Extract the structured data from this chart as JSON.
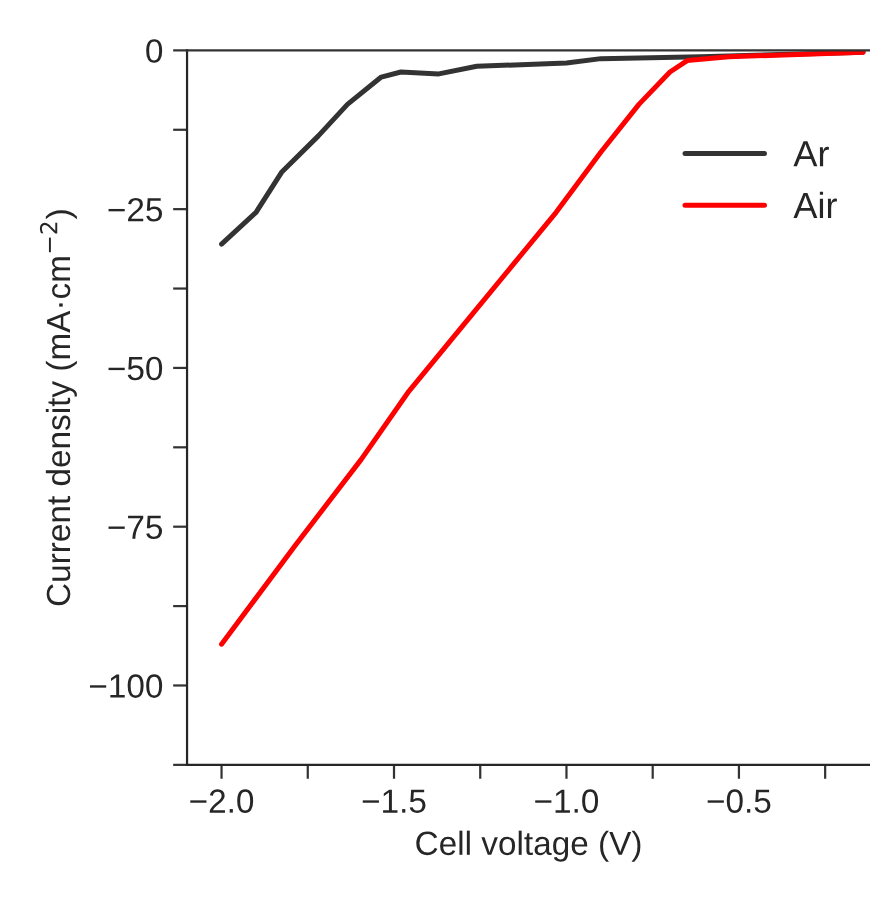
{
  "chart_data": {
    "type": "line",
    "xlabel": "Cell voltage (V)",
    "ylabel": "Current density (mA·cm$^{−2}$)",
    "xlim": [
      -2.1,
      -0.12
    ],
    "ylim": [
      -112.5,
      0
    ],
    "xticks": [
      {
        "value": -2.0,
        "label": "−2.0"
      },
      {
        "value": -1.75,
        "label": null
      },
      {
        "value": -1.5,
        "label": "−1.5"
      },
      {
        "value": -1.25,
        "label": null
      },
      {
        "value": -1.0,
        "label": "−1.0"
      },
      {
        "value": -0.75,
        "label": null
      },
      {
        "value": -0.5,
        "label": "−0.5"
      },
      {
        "value": -0.25,
        "label": null
      }
    ],
    "yticks": [
      {
        "value": -112.5,
        "label": null
      },
      {
        "value": -100,
        "label": "−100"
      },
      {
        "value": -87.5,
        "label": null
      },
      {
        "value": -75,
        "label": "−75"
      },
      {
        "value": -62.5,
        "label": null
      },
      {
        "value": -50,
        "label": "−50"
      },
      {
        "value": -37.5,
        "label": null
      },
      {
        "value": -25,
        "label": "−25"
      },
      {
        "value": -12.5,
        "label": null
      },
      {
        "value": 0,
        "label": "0"
      }
    ],
    "legend": "top right",
    "grid": false,
    "series": [
      {
        "name": "Ar",
        "color": "#333333",
        "x": [
          -2.0,
          -1.9,
          -1.826,
          -1.72,
          -1.635,
          -1.537,
          -1.48,
          -1.37,
          -1.26,
          -1.0,
          -0.9,
          -0.61,
          -0.14
        ],
        "values": [
          -30.5,
          -25.5,
          -19.2,
          -13.5,
          -8.5,
          -4.2,
          -3.4,
          -3.7,
          -2.5,
          -2.0,
          -1.3,
          -1.0,
          -0.3
        ]
      },
      {
        "name": "Air",
        "color": "#ff0000",
        "x": [
          -2.0,
          -1.787,
          -1.595,
          -1.46,
          -1.28,
          -1.03,
          -0.9,
          -0.79,
          -0.7,
          -0.65,
          -0.53,
          -0.14
        ],
        "values": [
          -93.5,
          -78,
          -64.4,
          -53.9,
          -42,
          -25.5,
          -16,
          -8.5,
          -3.4,
          -1.6,
          -1.0,
          -0.3
        ]
      }
    ]
  }
}
